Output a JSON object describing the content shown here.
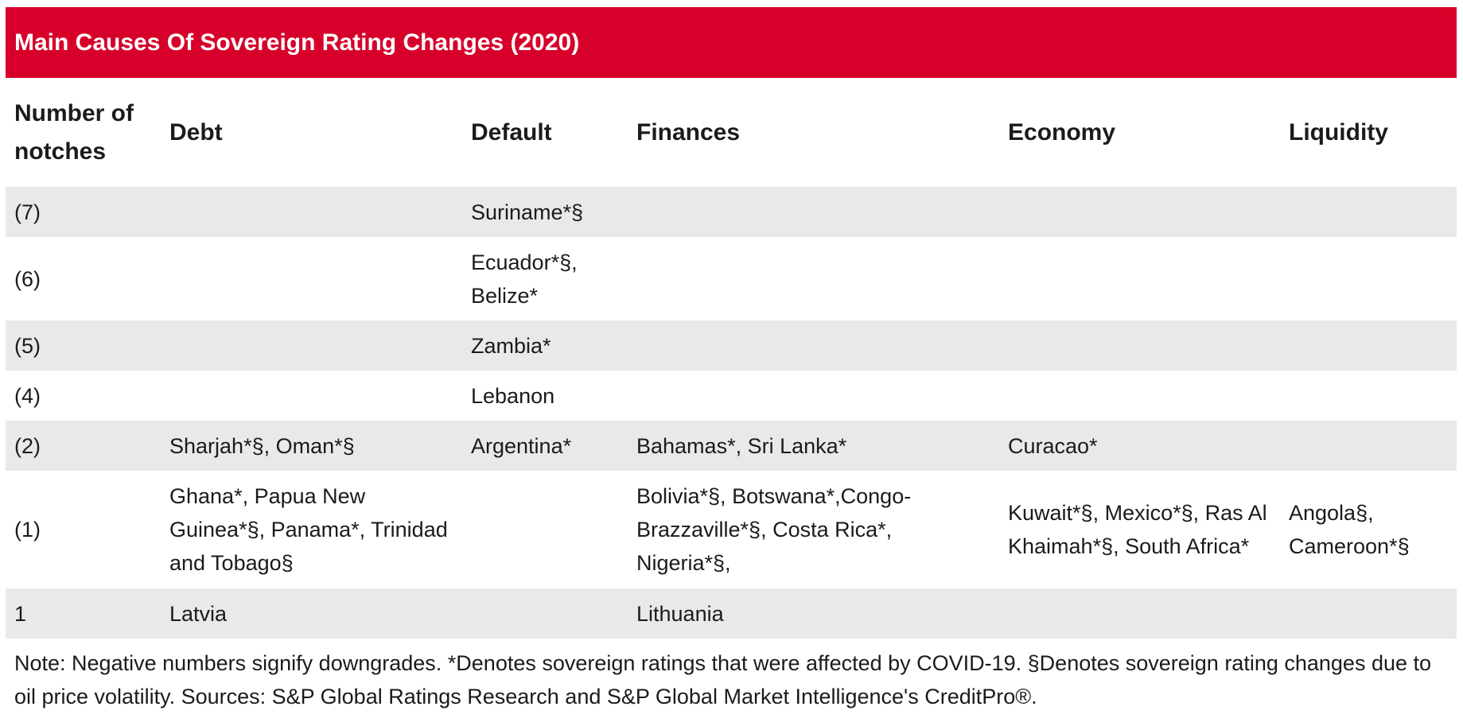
{
  "title": "Main Causes Of Sovereign Rating Changes (2020)",
  "columns": {
    "notches": "Number of notches",
    "debt": "Debt",
    "default": "Default",
    "finances": "Finances",
    "economy": "Economy",
    "liquidity": "Liquidity"
  },
  "rows": [
    {
      "notches": "(7)",
      "debt": "",
      "default": "Suriname*§",
      "finances": "",
      "economy": "",
      "liquidity": ""
    },
    {
      "notches": "(6)",
      "debt": "",
      "default": "Ecuador*§, Belize*",
      "finances": "",
      "economy": "",
      "liquidity": ""
    },
    {
      "notches": "(5)",
      "debt": "",
      "default": "Zambia*",
      "finances": "",
      "economy": "",
      "liquidity": ""
    },
    {
      "notches": "(4)",
      "debt": "",
      "default": "Lebanon",
      "finances": "",
      "economy": "",
      "liquidity": ""
    },
    {
      "notches": "(2)",
      "debt": "Sharjah*§, Oman*§",
      "default": "Argentina*",
      "finances": "Bahamas*, Sri Lanka*",
      "economy": "Curacao*",
      "liquidity": ""
    },
    {
      "notches": "(1)",
      "debt": "Ghana*, Papua New Guinea*§, Panama*, Trinidad and Tobago§",
      "default": "",
      "finances": "Bolivia*§, Botswana*,Congo-Brazzaville*§, Costa Rica*, Nigeria*§,",
      "economy": "Kuwait*§, Mexico*§, Ras Al Khaimah*§, South Africa*",
      "liquidity": "Angola§, Cameroon*§"
    },
    {
      "notches": "1",
      "debt": "Latvia",
      "default": "",
      "finances": "Lithuania",
      "economy": "",
      "liquidity": ""
    }
  ],
  "note": "Note: Negative numbers signify downgrades. *Denotes sovereign ratings that were affected by COVID-19. §Denotes sovereign rating changes due to oil price volatility. Sources: S&P Global Ratings Research and S&P Global Market Intelligence's CreditPro®."
}
